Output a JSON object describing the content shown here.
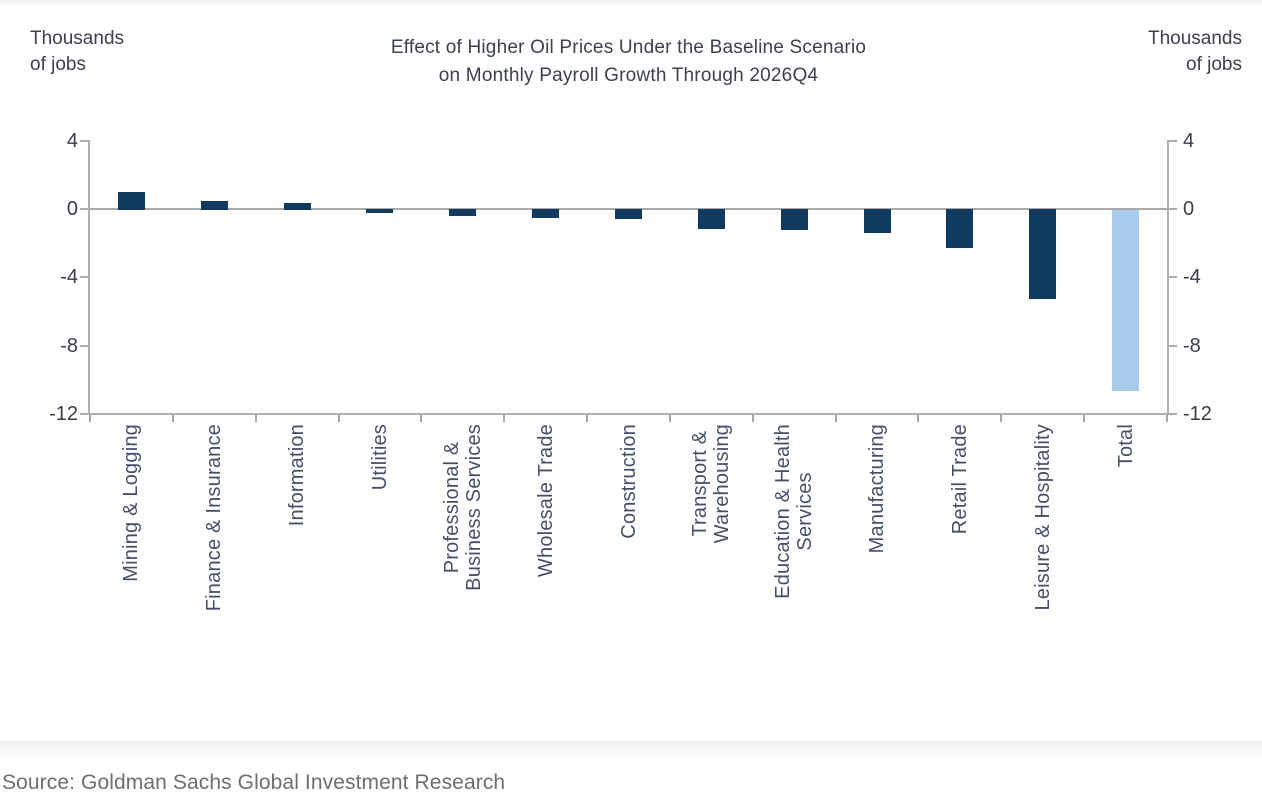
{
  "chart_data": {
    "type": "bar",
    "title": "Effect of Higher Oil Prices Under the Baseline Scenario on Monthly Payroll Growth Through 2026Q4",
    "title_lines": [
      "Effect of Higher Oil Prices Under the Baseline Scenario",
      "on Monthly Payroll Growth Through 2026Q4"
    ],
    "y_unit_label": "Thousands of jobs",
    "y_unit_lines": [
      "Thousands",
      "of jobs"
    ],
    "categories": [
      "Mining & Logging",
      "Finance & Insurance",
      "Information",
      "Utilities",
      "Professional & Business Services",
      "Wholesale Trade",
      "Construction",
      "Transport & Warehousing",
      "Education & Health Services",
      "Manufacturing",
      "Retail Trade",
      "Leisure & Hospitality",
      "Total"
    ],
    "category_label_lines": [
      [
        "Mining & Logging"
      ],
      [
        "Finance & Insurance"
      ],
      [
        "Information"
      ],
      [
        "Utilities"
      ],
      [
        "Professional &",
        "Business Services"
      ],
      [
        "Wholesale Trade"
      ],
      [
        "Construction"
      ],
      [
        "Transport &",
        "Warehousing"
      ],
      [
        "Education & Health",
        "Services"
      ],
      [
        "Manufacturing"
      ],
      [
        "Retail Trade"
      ],
      [
        "Leisure & Hospitality"
      ],
      [
        "Total"
      ]
    ],
    "values": [
      1.0,
      0.45,
      0.35,
      -0.2,
      -0.35,
      -0.45,
      -0.55,
      -1.1,
      -1.2,
      -1.35,
      -2.2,
      -5.2,
      -10.6
    ],
    "yticks": [
      4,
      0,
      -4,
      -8,
      -12
    ],
    "ylim": [
      -12,
      4
    ],
    "grid": false,
    "legend_position": "none",
    "colors": {
      "bar": "#113a61",
      "total_bar": "#a7cbea",
      "zero_line": "#a9a9a9",
      "axis": "#b0b0b0",
      "title_text": "#3d4150",
      "tick_text": "#383d4b",
      "category_text": "#44506a",
      "source_text": "#6e6e6e"
    }
  },
  "footer": {
    "source": "Source: Goldman Sachs Global Investment Research"
  }
}
